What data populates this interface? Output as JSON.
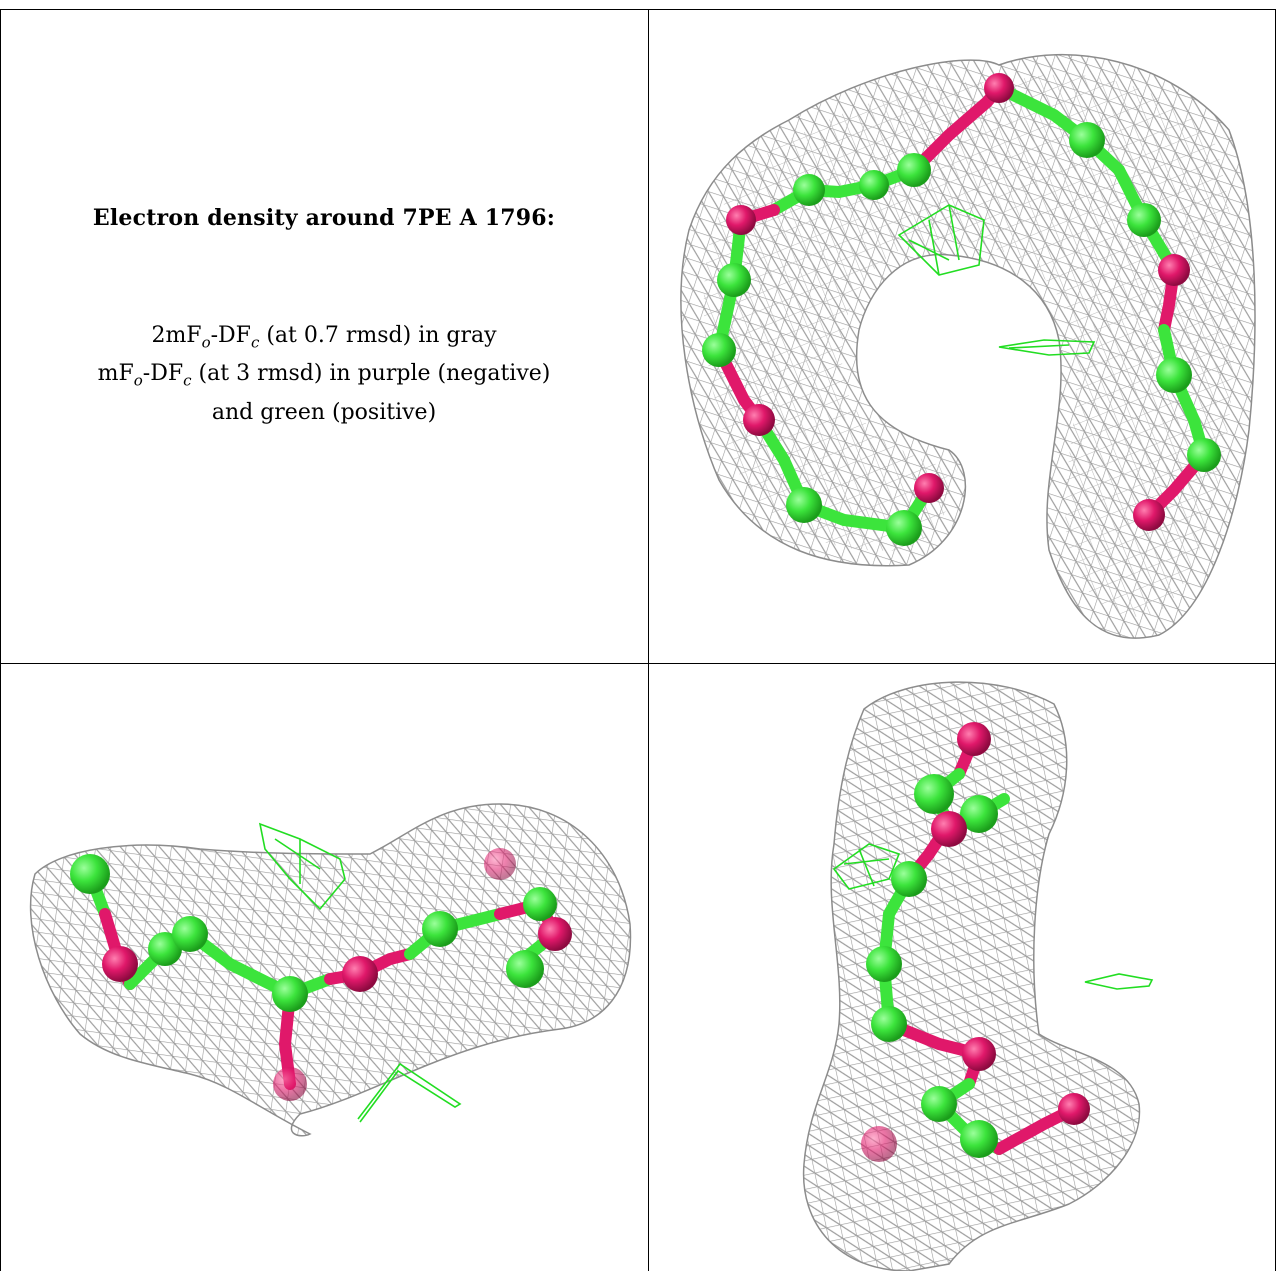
{
  "caption": {
    "title": "Electron density around 7PE A 1796:",
    "line1_prefix": "2mF",
    "line1_sub1": "o",
    "line1_mid": "-DF",
    "line1_sub2": "c",
    "line1_suffix": " (at 0.7 rmsd) in gray",
    "line2_prefix": "mF",
    "line2_sub1": "o",
    "line2_mid": "-DF",
    "line2_sub2": "c",
    "line2_suffix": " (at 3 rmsd) in purple (negative)",
    "line3": "and green (positive)"
  },
  "colors": {
    "carbon": "#3ce43c",
    "oxygen": "#e0186a",
    "mesh_2fofc": "#9a9a9a",
    "mesh_fofc_positive": "#22dd22"
  },
  "views": [
    {
      "name": "view-top-right",
      "icon": "molecule-density-render"
    },
    {
      "name": "view-bottom-left",
      "icon": "molecule-density-render"
    },
    {
      "name": "view-bottom-right",
      "icon": "molecule-density-render"
    }
  ]
}
